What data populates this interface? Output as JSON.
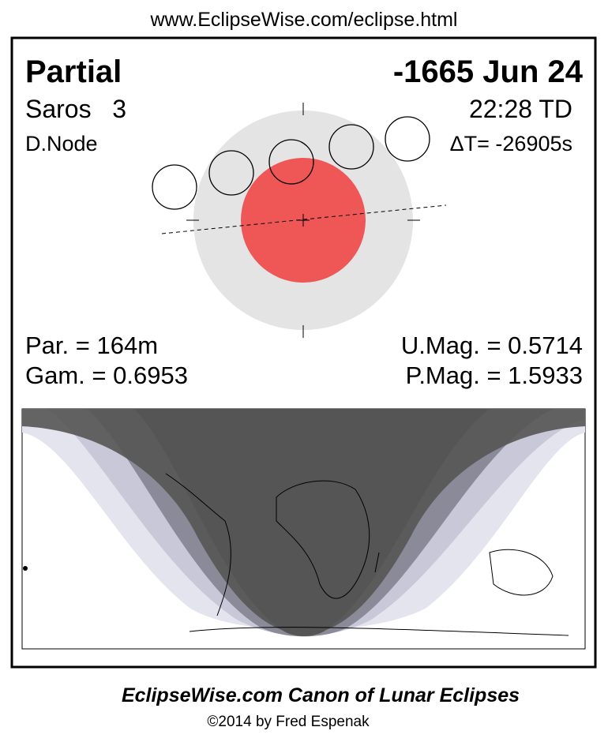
{
  "header": {
    "url": "www.EclipseWise.com/eclipse.html"
  },
  "eclipse": {
    "type": "Partial",
    "date": "-1665 Jun 24",
    "saros": "Saros   3",
    "time": "22:28 TD",
    "node": "D.Node",
    "delta_t": "ΔT= -26905s",
    "duration": "Par. = 164m",
    "umbral_magnitude": "U.Mag. = 0.5714",
    "gamma": "Gam. = 0.6953",
    "penumbral_magnitude": "P.Mag. = 1.5933"
  },
  "footer": {
    "title": "EclipseWise.com Canon of Lunar Eclipses",
    "copyright": "©2014 by Fred Espenak"
  }
}
